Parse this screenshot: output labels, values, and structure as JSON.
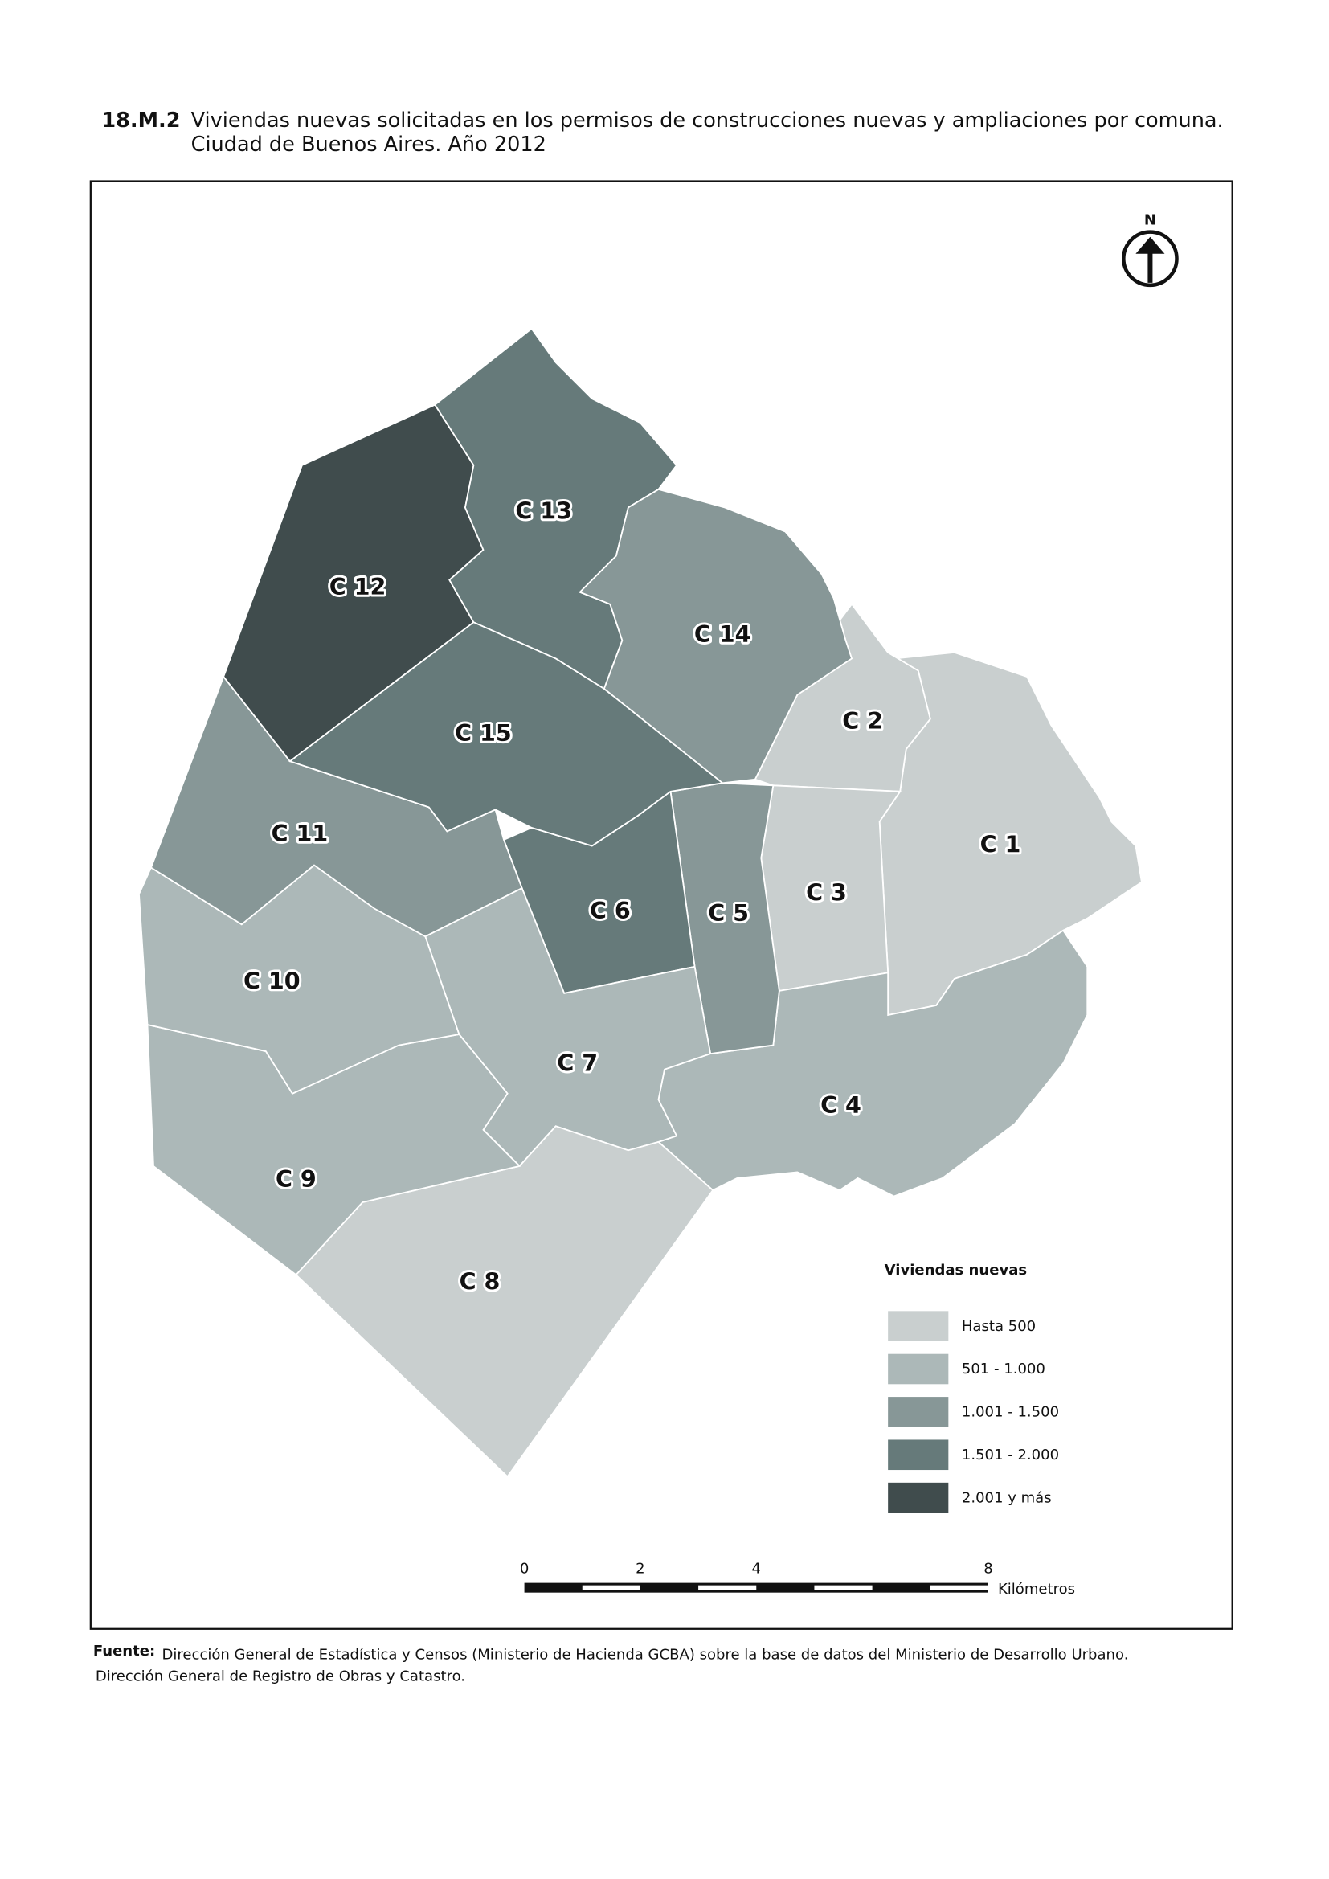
{
  "header": {
    "number": "18.M.2",
    "title_line1": "Viviendas nuevas solicitadas en los permisos de construcciones nuevas y ampliaciones por comuna.",
    "title_line2": "Ciudad de Buenos Aires. Año 2012"
  },
  "north": "N",
  "map": {
    "comunas": [
      {
        "label": "C 1",
        "class": 0
      },
      {
        "label": "C 2",
        "class": 0
      },
      {
        "label": "C 3",
        "class": 0
      },
      {
        "label": "C 4",
        "class": 1
      },
      {
        "label": "C 5",
        "class": 2
      },
      {
        "label": "C 6",
        "class": 3
      },
      {
        "label": "C 7",
        "class": 1
      },
      {
        "label": "C 8",
        "class": 0
      },
      {
        "label": "C 9",
        "class": 1
      },
      {
        "label": "C 10",
        "class": 1
      },
      {
        "label": "C 11",
        "class": 2
      },
      {
        "label": "C 12",
        "class": 4
      },
      {
        "label": "C 13",
        "class": 3
      },
      {
        "label": "C 14",
        "class": 2
      },
      {
        "label": "C 15",
        "class": 3
      }
    ]
  },
  "legend": {
    "title": "Viviendas nuevas",
    "items": [
      {
        "label": "Hasta 500",
        "color": "#c9cfcf"
      },
      {
        "label": "501 - 1.000",
        "color": "#acb8b8"
      },
      {
        "label": "1.001 - 1.500",
        "color": "#879797"
      },
      {
        "label": "1.501 - 2.000",
        "color": "#667a7a"
      },
      {
        "label": "2.001 y más",
        "color": "#404c4d"
      }
    ]
  },
  "scale": {
    "ticks": [
      0,
      2,
      4,
      8
    ],
    "unit": "Kilómetros"
  },
  "source": {
    "label": "Fuente:",
    "line1": "Dirección General de Estadística y Censos (Ministerio de Hacienda GCBA) sobre la base de datos del Ministerio de Desarrollo Urbano.",
    "line2": "Dirección General de Registro de Obras y Catastro."
  }
}
